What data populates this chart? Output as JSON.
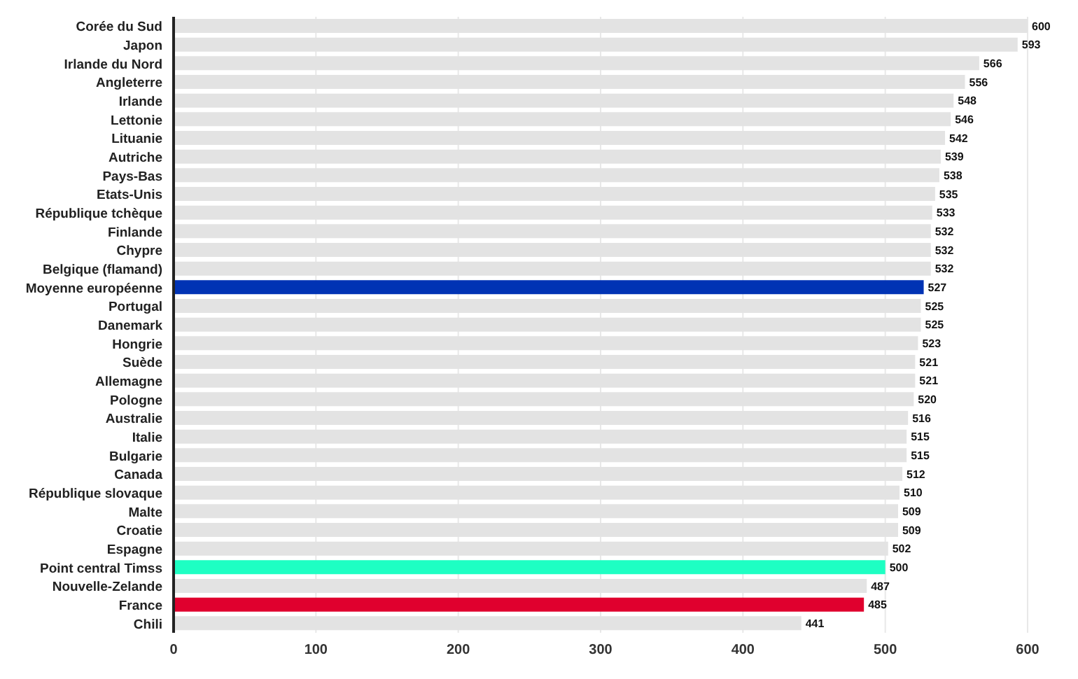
{
  "chart_data": {
    "type": "bar",
    "orientation": "horizontal",
    "categories": [
      "Corée du Sud",
      "Japon",
      "Irlande du Nord",
      "Angleterre",
      "Irlande",
      "Lettonie",
      "Lituanie",
      "Autriche",
      "Pays-Bas",
      "Etats-Unis",
      "République tchèque",
      "Finlande",
      "Chypre",
      "Belgique (flamand)",
      "Moyenne européenne",
      "Portugal",
      "Danemark",
      "Hongrie",
      "Suède",
      "Allemagne",
      "Pologne",
      "Australie",
      "Italie",
      "Bulgarie",
      "Canada",
      "République slovaque",
      "Malte",
      "Croatie",
      "Espagne",
      "Point central Timss",
      "Nouvelle-Zelande",
      "France",
      "Chili"
    ],
    "values": [
      600,
      593,
      566,
      556,
      548,
      546,
      542,
      539,
      538,
      535,
      533,
      532,
      532,
      532,
      527,
      525,
      525,
      523,
      521,
      521,
      520,
      516,
      515,
      515,
      512,
      510,
      509,
      509,
      502,
      500,
      487,
      485,
      441
    ],
    "colors": [
      "#e3e3e3",
      "#e3e3e3",
      "#e3e3e3",
      "#e3e3e3",
      "#e3e3e3",
      "#e3e3e3",
      "#e3e3e3",
      "#e3e3e3",
      "#e3e3e3",
      "#e3e3e3",
      "#e3e3e3",
      "#e3e3e3",
      "#e3e3e3",
      "#e3e3e3",
      "#0033b4",
      "#e3e3e3",
      "#e3e3e3",
      "#e3e3e3",
      "#e3e3e3",
      "#e3e3e3",
      "#e3e3e3",
      "#e3e3e3",
      "#e3e3e3",
      "#e3e3e3",
      "#e3e3e3",
      "#e3e3e3",
      "#e3e3e3",
      "#e3e3e3",
      "#e3e3e3",
      "#1effc3",
      "#e3e3e3",
      "#e0002e",
      "#e3e3e3"
    ],
    "xlim": [
      0,
      600
    ],
    "xticks": [
      0,
      100,
      200,
      300,
      400,
      500,
      600
    ],
    "grid": "x",
    "data_labels": true
  }
}
